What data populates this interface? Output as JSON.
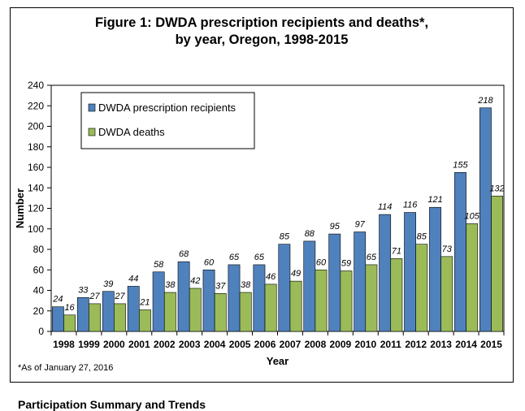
{
  "chart_data": {
    "type": "bar",
    "title_line1": "Figure 1: DWDA prescription recipients and deaths*,",
    "title_line2": "by year, Oregon, 1998-2015",
    "xlabel": "Year",
    "ylabel": "Number",
    "ylim": [
      0,
      240
    ],
    "yticks": [
      0,
      20,
      40,
      60,
      80,
      100,
      120,
      140,
      160,
      180,
      200,
      220,
      240
    ],
    "grid": false,
    "legend_position": "top-left",
    "categories": [
      "1998",
      "1999",
      "2000",
      "2001",
      "2002",
      "2003",
      "2004",
      "2005",
      "2006",
      "2007",
      "2008",
      "2009",
      "2010",
      "2011",
      "2012",
      "2013",
      "2014",
      "2015"
    ],
    "series": [
      {
        "name": "DWDA prescription recipients",
        "color": "#4f81bd",
        "values": [
          24,
          33,
          39,
          44,
          58,
          68,
          60,
          65,
          65,
          85,
          88,
          95,
          97,
          114,
          116,
          121,
          155,
          218
        ]
      },
      {
        "name": "DWDA deaths",
        "color": "#9bbb59",
        "values": [
          16,
          27,
          27,
          21,
          38,
          42,
          37,
          38,
          46,
          49,
          60,
          59,
          65,
          71,
          85,
          73,
          105,
          132
        ]
      }
    ]
  },
  "footnote": "*As of January 27, 2016",
  "cutoff_text": "Participation Summary and Trends"
}
